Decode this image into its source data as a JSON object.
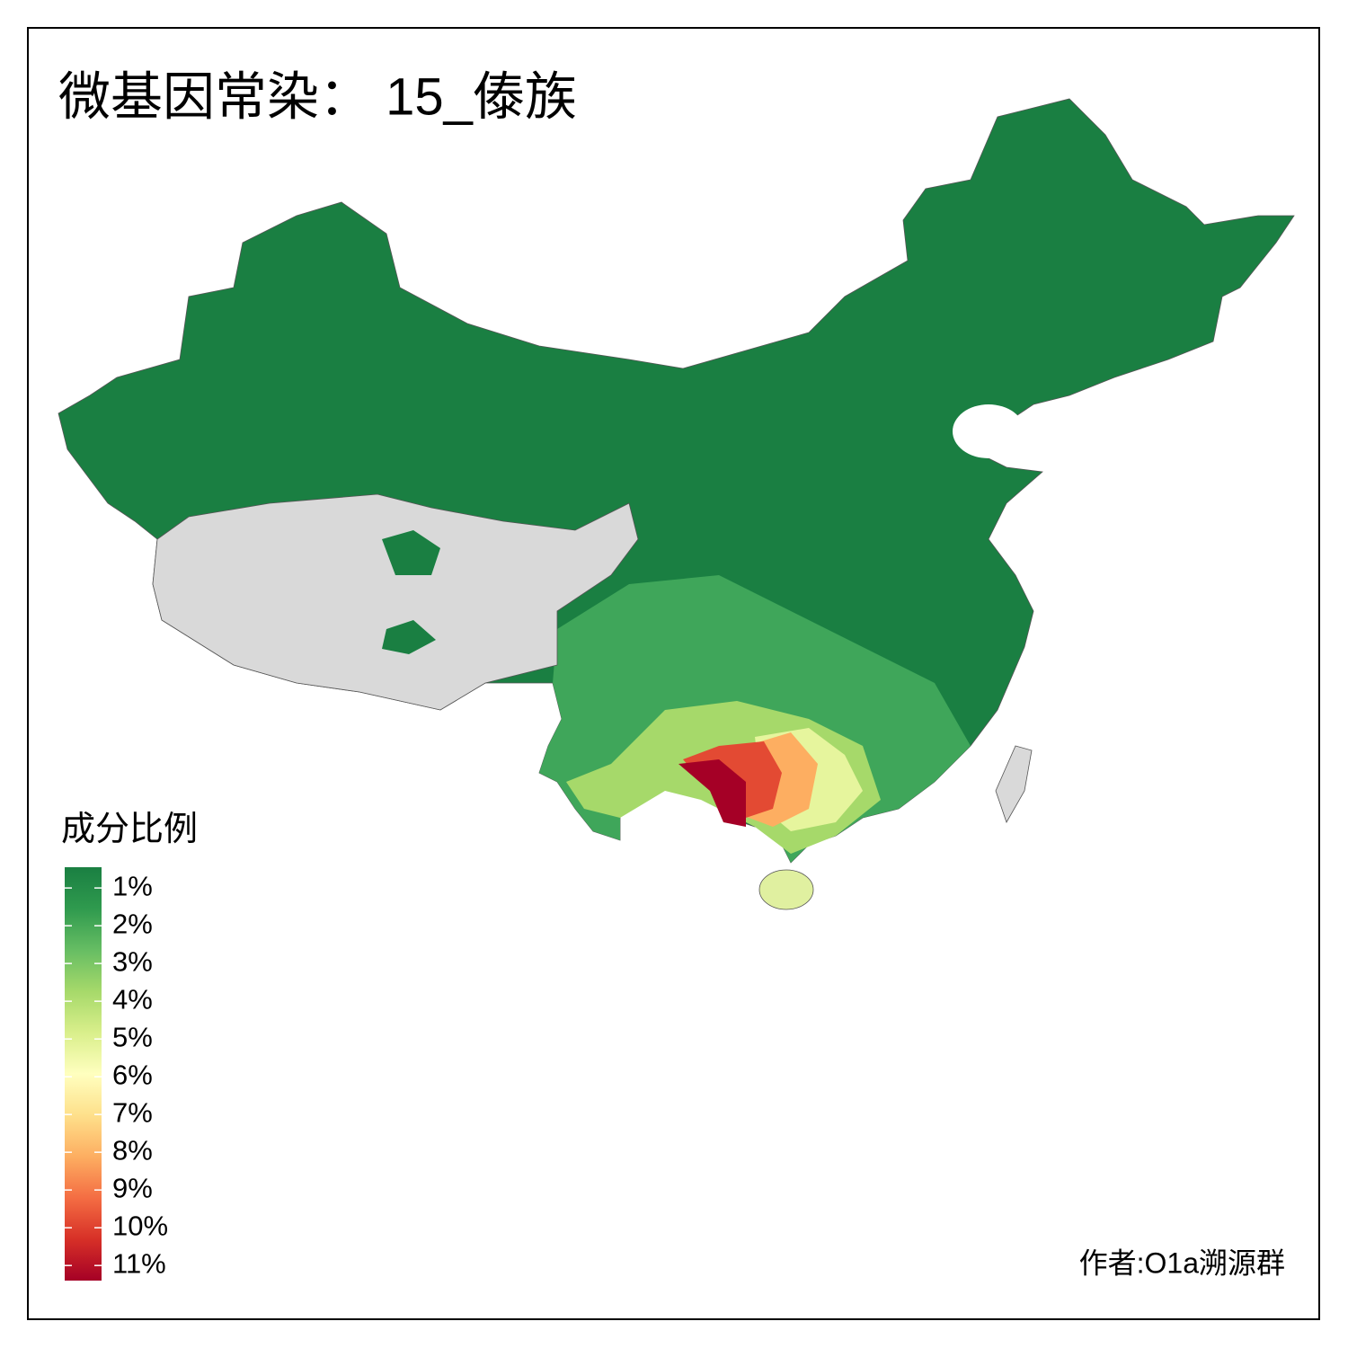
{
  "title": "微基因常染： 15_傣族",
  "legend": {
    "title": "成分比例",
    "limits": [
      0.45,
      11.4
    ],
    "ticks": [
      {
        "value": 1,
        "label": "1%"
      },
      {
        "value": 2,
        "label": "2%"
      },
      {
        "value": 3,
        "label": "3%"
      },
      {
        "value": 4,
        "label": "4%"
      },
      {
        "value": 5,
        "label": "5%"
      },
      {
        "value": 6,
        "label": "6%"
      },
      {
        "value": 7,
        "label": "7%"
      },
      {
        "value": 8,
        "label": "8%"
      },
      {
        "value": 9,
        "label": "9%"
      },
      {
        "value": 10,
        "label": "10%"
      },
      {
        "value": 11,
        "label": "11%"
      }
    ],
    "colors": [
      "#1a7f42",
      "#2f9a4e",
      "#66bd63",
      "#a6d96a",
      "#d9ef8b",
      "#ffffbf",
      "#fee08b",
      "#fdae61",
      "#f46d43",
      "#d73027",
      "#a50026"
    ]
  },
  "author": "作者:O1a溯源群"
}
